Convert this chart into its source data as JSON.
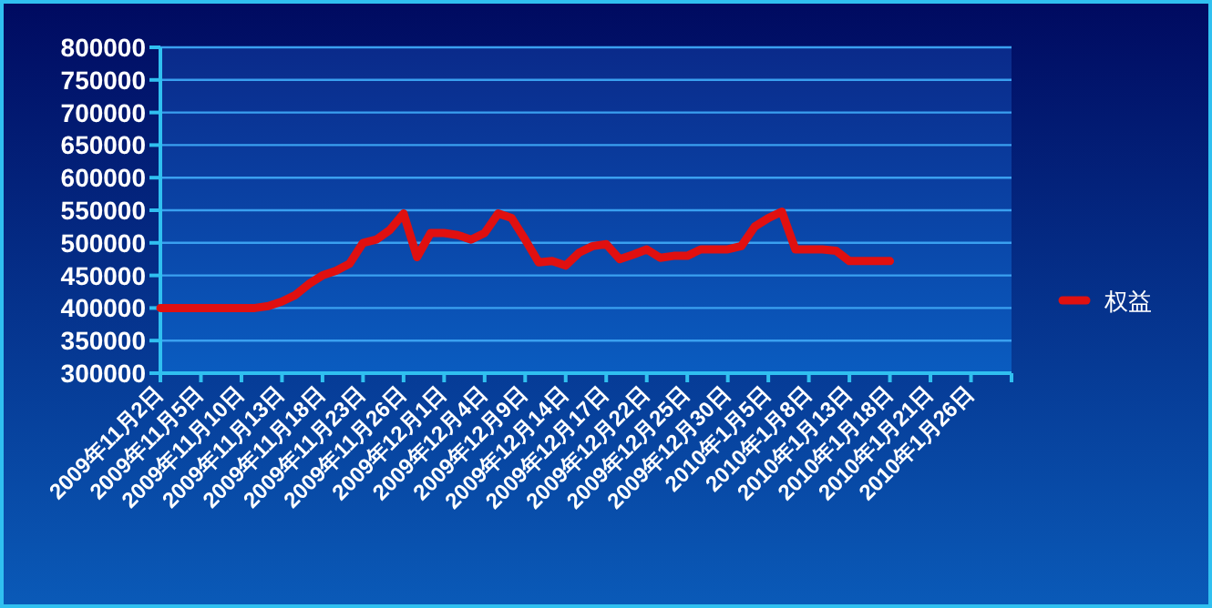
{
  "chart_data": {
    "type": "line",
    "categories": [
      "2009年11月2日",
      null,
      null,
      "2009年11月5日",
      null,
      null,
      "2009年11月10日",
      null,
      null,
      "2009年11月13日",
      null,
      null,
      "2009年11月18日",
      null,
      null,
      "2009年11月23日",
      null,
      null,
      "2009年11月26日",
      null,
      null,
      "2009年12月1日",
      null,
      null,
      "2009年12月4日",
      null,
      null,
      "2009年12月9日",
      null,
      null,
      "2009年12月14日",
      null,
      null,
      "2009年12月17日",
      null,
      null,
      "2009年12月22日",
      null,
      null,
      "2009年12月25日",
      null,
      null,
      "2009年12月30日",
      null,
      null,
      "2010年1月5日",
      null,
      null,
      "2010年1月8日",
      null,
      null,
      "2010年1月13日",
      null,
      null,
      "2010年1月18日",
      null,
      null,
      "2010年1月21日",
      null,
      null,
      "2010年1月26日",
      null,
      null
    ],
    "series": [
      {
        "name": "权益",
        "color": "#e01010",
        "values": [
          400000,
          400000,
          400000,
          400000,
          400000,
          400000,
          400000,
          400000,
          403000,
          410000,
          420000,
          437000,
          450000,
          457000,
          468000,
          500000,
          505000,
          520000,
          545000,
          478000,
          515000,
          515000,
          512000,
          505000,
          515000,
          545000,
          538000,
          505000,
          470000,
          472000,
          465000,
          485000,
          495000,
          498000,
          475000,
          482000,
          490000,
          477000,
          480000,
          480000,
          490000,
          490000,
          490000,
          495000,
          525000,
          538000,
          548000,
          490000,
          490000,
          490000,
          488000,
          472000,
          472000,
          472000,
          472000,
          null,
          null,
          null,
          null,
          null,
          null,
          null,
          null
        ]
      }
    ],
    "ylim": [
      300000,
      800000
    ],
    "yticks": [
      300000,
      350000,
      400000,
      450000,
      500000,
      550000,
      600000,
      650000,
      700000,
      750000,
      800000
    ],
    "grid": "y",
    "legend": "right",
    "marker": "none",
    "line_style": "solid"
  }
}
